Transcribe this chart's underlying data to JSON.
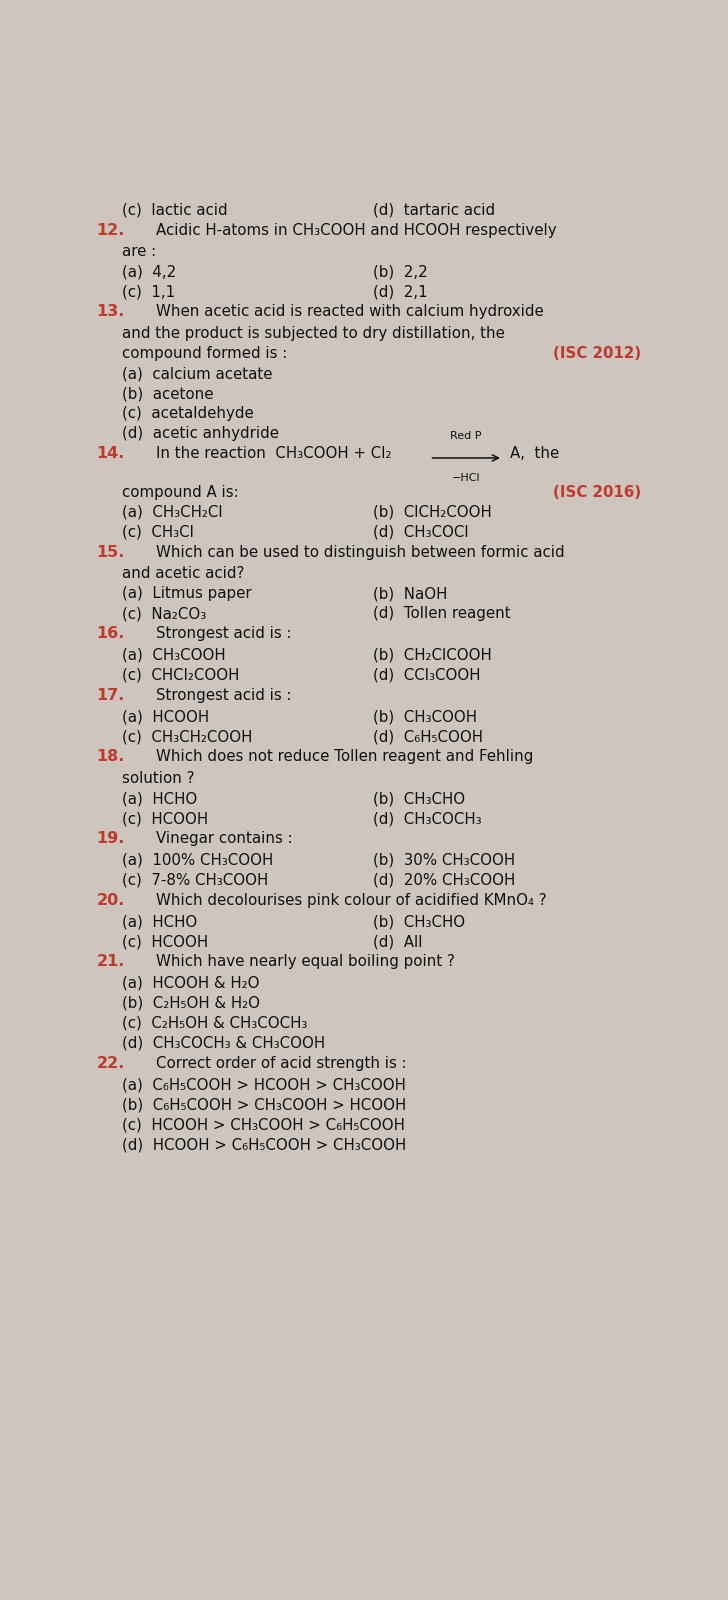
{
  "bg_color": "#cec6be",
  "text_color": "#111111",
  "number_color": "#c0392b",
  "fs": 10.8,
  "fs_num": 11.5,
  "fs_small": 8.0,
  "lines": [
    {
      "type": "opts2",
      "opts": [
        "(c)  lactic acid",
        "(d)  tartaric acid"
      ],
      "c2": 0.5
    },
    {
      "type": "q",
      "num": "12.",
      "text1": "Acidic H-atoms in CH₃COOH and HCOOH respectively"
    },
    {
      "type": "continuation",
      "text": "are :"
    },
    {
      "type": "opts2",
      "opts": [
        "(a)  4,2",
        "(b)  2,2"
      ],
      "c2": 0.5
    },
    {
      "type": "opts2",
      "opts": [
        "(c)  1,1",
        "(d)  2,1"
      ],
      "c2": 0.5
    },
    {
      "type": "q",
      "num": "13.",
      "text1": "When acetic acid is reacted with calcium hydroxide"
    },
    {
      "type": "continuation",
      "text": "and the product is subjected to dry distillation, the"
    },
    {
      "type": "continuation_isc",
      "text": "compound formed is :",
      "isc": "(ISC 2012)"
    },
    {
      "type": "opt1",
      "text": "(a)  calcium acetate"
    },
    {
      "type": "opt1",
      "text": "(b)  acetone"
    },
    {
      "type": "opt1",
      "text": "(c)  acetaldehyde"
    },
    {
      "type": "opt1",
      "text": "(d)  acetic anhydride"
    },
    {
      "type": "reaction14"
    },
    {
      "type": "compound_a",
      "isc": "(ISC 2016)"
    },
    {
      "type": "opts2",
      "opts": [
        "(a)  CH₃CH₂Cl",
        "(b)  ClCH₂COOH"
      ],
      "c2": 0.5
    },
    {
      "type": "opts2",
      "opts": [
        "(c)  CH₃Cl",
        "(d)  CH₃COCl"
      ],
      "c2": 0.5
    },
    {
      "type": "q",
      "num": "15.",
      "text1": "Which can be used to distinguish between formic acid"
    },
    {
      "type": "continuation",
      "text": "and acetic acid?"
    },
    {
      "type": "opts2",
      "opts": [
        "(a)  Litmus paper",
        "(b)  NaOH"
      ],
      "c2": 0.5
    },
    {
      "type": "opts2",
      "opts": [
        "(c)  Na₂CO₃",
        "(d)  Tollen reagent"
      ],
      "c2": 0.5
    },
    {
      "type": "q",
      "num": "16.",
      "text1": "Strongest acid is :"
    },
    {
      "type": "opts2",
      "opts": [
        "(a)  CH₃COOH",
        "(b)  CH₂ClCOOH"
      ],
      "c2": 0.5
    },
    {
      "type": "opts2",
      "opts": [
        "(c)  CHCl₂COOH",
        "(d)  CCl₃COOH"
      ],
      "c2": 0.5
    },
    {
      "type": "q",
      "num": "17.",
      "text1": "Strongest acid is :"
    },
    {
      "type": "opts2",
      "opts": [
        "(a)  HCOOH",
        "(b)  CH₃COOH"
      ],
      "c2": 0.5
    },
    {
      "type": "opts2",
      "opts": [
        "(c)  CH₃CH₂COOH",
        "(d)  C₆H₅COOH"
      ],
      "c2": 0.5
    },
    {
      "type": "q",
      "num": "18.",
      "text1": "Which does not reduce Tollen reagent and Fehling"
    },
    {
      "type": "continuation",
      "text": "solution ?"
    },
    {
      "type": "opts2",
      "opts": [
        "(a)  HCHO",
        "(b)  CH₃CHO"
      ],
      "c2": 0.5
    },
    {
      "type": "opts2",
      "opts": [
        "(c)  HCOOH",
        "(d)  CH₃COCH₃"
      ],
      "c2": 0.5
    },
    {
      "type": "q",
      "num": "19.",
      "text1": "Vinegar contains :"
    },
    {
      "type": "opts2",
      "opts": [
        "(a)  100% CH₃COOH",
        "(b)  30% CH₃COOH"
      ],
      "c2": 0.5
    },
    {
      "type": "opts2",
      "opts": [
        "(c)  7-8% CH₃COOH",
        "(d)  20% CH₃COOH"
      ],
      "c2": 0.5
    },
    {
      "type": "q",
      "num": "20.",
      "text1": "Which decolourises pink colour of acidified KMnO₄ ?"
    },
    {
      "type": "opts2",
      "opts": [
        "(a)  HCHO",
        "(b)  CH₃CHO"
      ],
      "c2": 0.5
    },
    {
      "type": "opts2",
      "opts": [
        "(c)  HCOOH",
        "(d)  All"
      ],
      "c2": 0.5
    },
    {
      "type": "q",
      "num": "21.",
      "text1": "Which have nearly equal boiling point ?"
    },
    {
      "type": "opt1",
      "text": "(a)  HCOOH & H₂O"
    },
    {
      "type": "opt1",
      "text": "(b)  C₂H₅OH & H₂O"
    },
    {
      "type": "opt1",
      "text": "(c)  C₂H₅OH & CH₃COCH₃"
    },
    {
      "type": "opt1",
      "text": "(d)  CH₃COCH₃ & CH₃COOH"
    },
    {
      "type": "q",
      "num": "22.",
      "text1": "Correct order of acid strength is :"
    },
    {
      "type": "opt1",
      "text": "(a)  C₆H₅COOH > HCOOH > CH₃COOH"
    },
    {
      "type": "opt1",
      "text": "(b)  C₆H₅COOH > CH₃COOH > HCOOH"
    },
    {
      "type": "opt1",
      "text": "(c)  HCOOH > CH₃COOH > C₆H₅COOH"
    },
    {
      "type": "opt1",
      "text": "(d)  HCOOH > C₆H₅COOH > CH₃COOH"
    }
  ]
}
